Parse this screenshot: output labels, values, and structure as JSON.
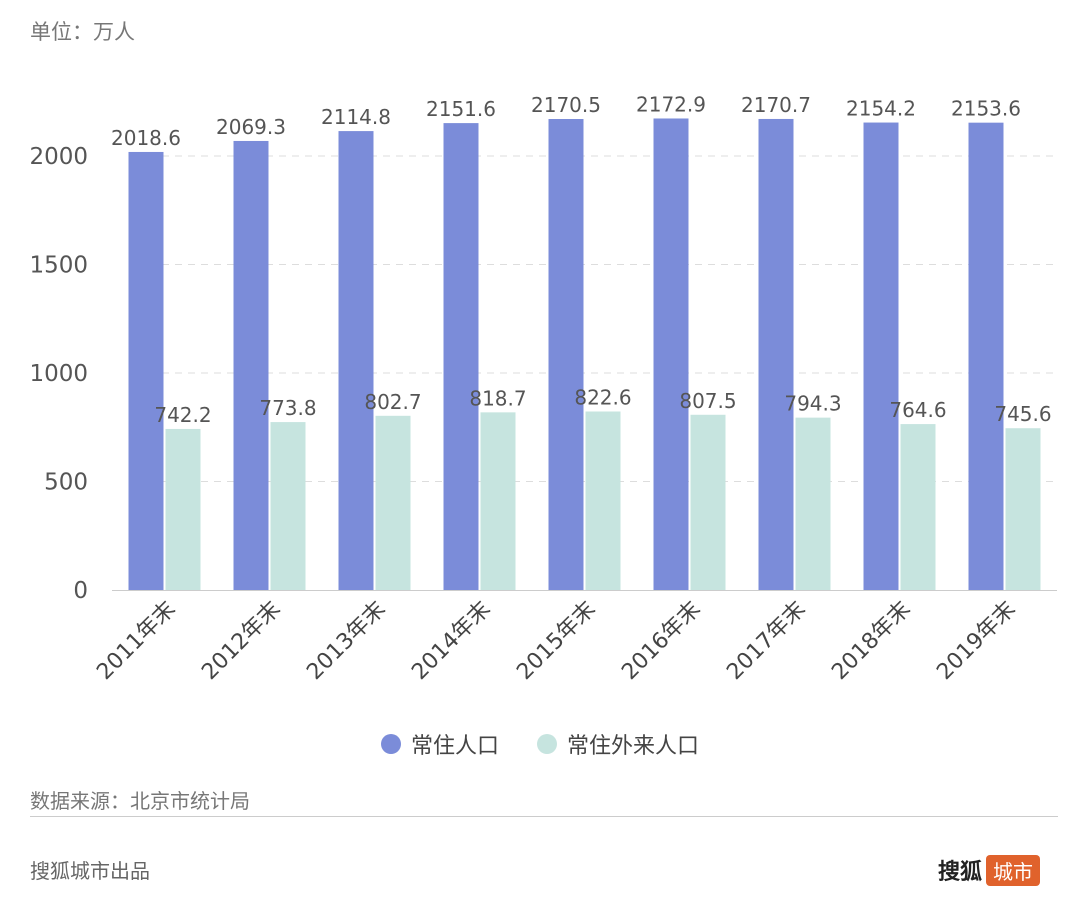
{
  "unit_label": "单位：万人",
  "source": "数据来源：北京市统计局",
  "credit": "搜狐城市出品",
  "logo": {
    "text": "搜狐",
    "badge": "城市"
  },
  "colors": {
    "resident": "#7b8cd9",
    "migrant": "#c6e4df",
    "logo_badge": "#e0622c"
  },
  "chart_data": {
    "type": "bar",
    "categories": [
      "2011年末",
      "2012年末",
      "2013年末",
      "2014年末",
      "2015年末",
      "2016年末",
      "2017年末",
      "2018年末",
      "2019年末"
    ],
    "series": [
      {
        "name": "常住人口",
        "values": [
          2018.6,
          2069.3,
          2114.8,
          2151.6,
          2170.5,
          2172.9,
          2170.7,
          2154.2,
          2153.6
        ]
      },
      {
        "name": "常住外来人口",
        "values": [
          742.2,
          773.8,
          802.7,
          818.7,
          822.6,
          807.5,
          794.3,
          764.6,
          745.6
        ]
      }
    ],
    "yticks": [
      0,
      500,
      1000,
      1500,
      2000
    ],
    "ylim": [
      0,
      2170
    ],
    "grid": true,
    "legend_position": "bottom"
  }
}
